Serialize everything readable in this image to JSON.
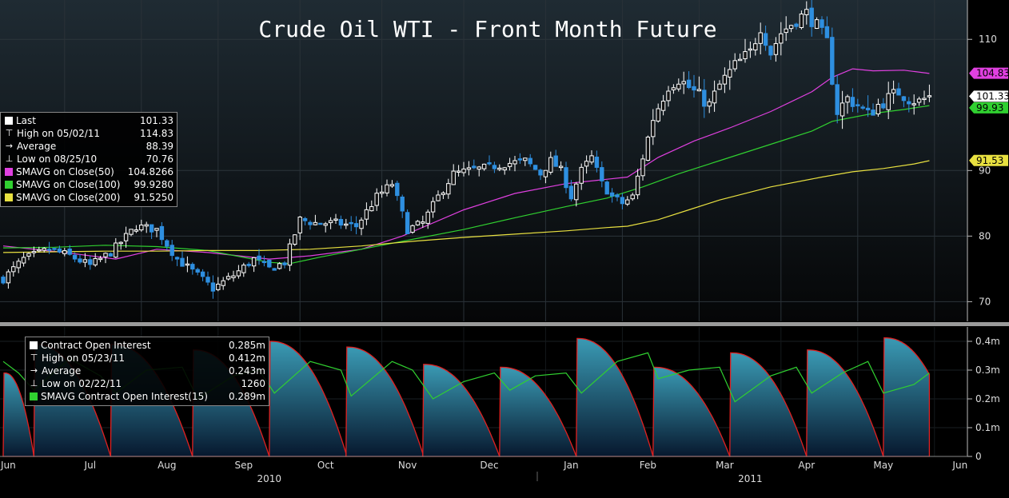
{
  "chart_data": [
    {
      "type": "candlestick",
      "title": "Crude Oil WTI - Front Month Future",
      "ylim": [
        67,
        116
      ],
      "yticks": [
        70,
        80,
        90,
        110
      ],
      "grid": true,
      "legend_position": "left",
      "colors": {
        "up": "#ffffff",
        "down": "#2e8fe0",
        "sma50": "#e040e0",
        "sma100": "#30d030",
        "sma200": "#e8e040"
      },
      "series": [
        {
          "name": "Price",
          "anchors": [
            [
              0,
              73.5
            ],
            [
              4,
              76.5
            ],
            [
              9,
              78
            ],
            [
              13,
              77
            ],
            [
              17,
              75.5
            ],
            [
              21,
              77.5
            ],
            [
              26,
              81.5
            ],
            [
              30,
              81
            ],
            [
              34,
              76.5
            ],
            [
              38,
              74
            ],
            [
              41,
              72
            ],
            [
              45,
              74
            ],
            [
              49,
              76.5
            ],
            [
              52,
              75
            ],
            [
              55,
              76
            ],
            [
              58,
              82.5
            ],
            [
              61,
              82
            ],
            [
              65,
              82
            ],
            [
              69,
              81.5
            ],
            [
              73,
              86
            ],
            [
              76,
              88
            ],
            [
              79,
              81
            ],
            [
              82,
              82
            ],
            [
              85,
              86
            ],
            [
              88,
              89.5
            ],
            [
              91,
              90
            ],
            [
              95,
              90.5
            ],
            [
              98,
              91
            ],
            [
              102,
              91.5
            ],
            [
              105,
              89.5
            ],
            [
              107,
              91.5
            ],
            [
              109,
              90
            ],
            [
              111,
              86
            ],
            [
              113,
              90
            ],
            [
              115,
              92
            ],
            [
              117,
              88
            ],
            [
              119,
              86
            ],
            [
              121,
              85
            ],
            [
              123,
              86
            ],
            [
              125,
              92
            ],
            [
              127,
              98
            ],
            [
              130,
              103
            ],
            [
              132,
              104
            ],
            [
              135,
              102
            ],
            [
              138,
              100
            ],
            [
              140,
              103
            ],
            [
              143,
              106
            ],
            [
              146,
              108
            ],
            [
              148,
              112
            ],
            [
              150,
              108
            ],
            [
              152,
              111
            ],
            [
              155,
              113
            ],
            [
              157,
              114
            ],
            [
              159,
              112
            ],
            [
              161,
              109.5
            ],
            [
              162,
              104
            ],
            [
              163,
              99
            ],
            [
              165,
              101
            ],
            [
              167,
              100
            ],
            [
              169,
              98.5
            ],
            [
              171,
              100
            ],
            [
              173,
              101
            ],
            [
              175,
              102
            ],
            [
              177,
              101
            ],
            [
              179,
              100.5
            ],
            [
              181,
              101.3
            ]
          ]
        },
        {
          "name": "SMAVG on Close(50)",
          "points": [
            [
              0,
              78.5
            ],
            [
              12,
              77.5
            ],
            [
              22,
              76.5
            ],
            [
              30,
              78
            ],
            [
              40,
              77.5
            ],
            [
              52,
              76.5
            ],
            [
              60,
              77
            ],
            [
              70,
              78
            ],
            [
              78,
              80
            ],
            [
              90,
              84
            ],
            [
              100,
              86.5
            ],
            [
              110,
              88
            ],
            [
              116,
              88.5
            ],
            [
              122,
              89
            ],
            [
              128,
              92
            ],
            [
              135,
              94.5
            ],
            [
              142,
              96.5
            ],
            [
              150,
              99
            ],
            [
              158,
              102
            ],
            [
              162,
              104.2
            ],
            [
              166,
              105.5
            ],
            [
              170,
              105.2
            ],
            [
              176,
              105.3
            ],
            [
              181,
              104.8
            ]
          ]
        },
        {
          "name": "SMAVG on Close(100)",
          "points": [
            [
              0,
              78.2
            ],
            [
              10,
              78.3
            ],
            [
              20,
              78.6
            ],
            [
              30,
              78.4
            ],
            [
              40,
              77.8
            ],
            [
              52,
              76
            ],
            [
              56,
              75.8
            ],
            [
              62,
              76.8
            ],
            [
              70,
              78
            ],
            [
              80,
              79.5
            ],
            [
              90,
              81
            ],
            [
              100,
              82.8
            ],
            [
              110,
              84.5
            ],
            [
              118,
              85.8
            ],
            [
              125,
              87.5
            ],
            [
              132,
              89.5
            ],
            [
              140,
              91.5
            ],
            [
              150,
              94
            ],
            [
              158,
              96
            ],
            [
              162,
              97.5
            ],
            [
              170,
              98.7
            ],
            [
              176,
              99.3
            ],
            [
              181,
              99.9
            ]
          ]
        },
        {
          "name": "SMAVG on Close(200)",
          "points": [
            [
              0,
              77.5
            ],
            [
              10,
              77.6
            ],
            [
              20,
              77.7
            ],
            [
              30,
              77.7
            ],
            [
              40,
              77.8
            ],
            [
              50,
              77.8
            ],
            [
              60,
              78
            ],
            [
              70,
              78.5
            ],
            [
              80,
              79.2
            ],
            [
              90,
              79.8
            ],
            [
              100,
              80.3
            ],
            [
              110,
              80.8
            ],
            [
              118,
              81.3
            ],
            [
              122,
              81.5
            ],
            [
              128,
              82.5
            ],
            [
              134,
              84
            ],
            [
              140,
              85.5
            ],
            [
              150,
              87.5
            ],
            [
              160,
              89
            ],
            [
              166,
              89.8
            ],
            [
              172,
              90.3
            ],
            [
              178,
              91
            ],
            [
              181,
              91.5
            ]
          ]
        }
      ],
      "axis_labels": [
        {
          "text": "104.83",
          "value": 104.83,
          "color": "#e040e0"
        },
        {
          "text": "101.33",
          "value": 101.33,
          "color": "#ffffff"
        },
        {
          "text": "99.93",
          "value": 99.93,
          "color": "#30d030"
        },
        {
          "text": "91.53",
          "value": 91.53,
          "color": "#e8e040"
        }
      ]
    },
    {
      "type": "area",
      "ylim": [
        0,
        0.45
      ],
      "yticks": [
        0,
        0.1,
        0.2,
        0.3,
        0.4
      ],
      "ytick_labels": [
        "0",
        "0.1m",
        "0.2m",
        "0.3m",
        "0.4m"
      ],
      "colors": {
        "area_top": "#3a9ab4",
        "area_bottom": "#07182e",
        "edge": "#e02020",
        "sma": "#30d030"
      },
      "series": [
        {
          "name": "Contract Open Interest",
          "cycles": [
            [
              0,
              6,
              0.29,
              0.0
            ],
            [
              6,
              21,
              0.39,
              0.0
            ],
            [
              21,
              37,
              0.39,
              0.0
            ],
            [
              37,
              52,
              0.37,
              0.0
            ],
            [
              52,
              67,
              0.4,
              0.01
            ],
            [
              67,
              82,
              0.38,
              0.01
            ],
            [
              82,
              97,
              0.32,
              0.0
            ],
            [
              97,
              112,
              0.31,
              0.0
            ],
            [
              112,
              127,
              0.41,
              0.0
            ],
            [
              127,
              142,
              0.31,
              0.0
            ],
            [
              142,
              157,
              0.36,
              0.0
            ],
            [
              157,
              172,
              0.37,
              0.0
            ],
            [
              172,
              181,
              0.412,
              0.285
            ]
          ]
        },
        {
          "name": "SMAVG Contract Open Interest(15)",
          "points": [
            [
              0,
              0.33
            ],
            [
              3,
              0.29
            ],
            [
              6,
              0.23
            ],
            [
              13,
              0.34
            ],
            [
              19,
              0.28
            ],
            [
              22,
              0.22
            ],
            [
              28,
              0.3
            ],
            [
              35,
              0.31
            ],
            [
              38,
              0.2
            ],
            [
              45,
              0.28
            ],
            [
              50,
              0.3
            ],
            [
              53,
              0.22
            ],
            [
              60,
              0.33
            ],
            [
              66,
              0.3
            ],
            [
              68,
              0.21
            ],
            [
              76,
              0.33
            ],
            [
              80,
              0.3
            ],
            [
              84,
              0.2
            ],
            [
              90,
              0.26
            ],
            [
              96,
              0.29
            ],
            [
              99,
              0.23
            ],
            [
              104,
              0.28
            ],
            [
              110,
              0.29
            ],
            [
              113,
              0.22
            ],
            [
              120,
              0.33
            ],
            [
              126,
              0.36
            ],
            [
              128,
              0.27
            ],
            [
              134,
              0.3
            ],
            [
              140,
              0.31
            ],
            [
              143,
              0.19
            ],
            [
              150,
              0.28
            ],
            [
              155,
              0.31
            ],
            [
              158,
              0.22
            ],
            [
              164,
              0.29
            ],
            [
              169,
              0.33
            ],
            [
              172,
              0.22
            ],
            [
              178,
              0.25
            ],
            [
              181,
              0.29
            ]
          ]
        }
      ]
    }
  ],
  "x_axis": {
    "months": [
      {
        "label": "Jun",
        "index": 1
      },
      {
        "label": "Jul",
        "index": 17
      },
      {
        "label": "Aug",
        "index": 32
      },
      {
        "label": "Sep",
        "index": 47
      },
      {
        "label": "Oct",
        "index": 63
      },
      {
        "label": "Nov",
        "index": 79
      },
      {
        "label": "Dec",
        "index": 95
      },
      {
        "label": "Jan",
        "index": 111
      },
      {
        "label": "Feb",
        "index": 126
      },
      {
        "label": "Mar",
        "index": 141
      },
      {
        "label": "Apr",
        "index": 157
      },
      {
        "label": "May",
        "index": 172
      },
      {
        "label": "Jun",
        "index": 187
      }
    ],
    "years": [
      {
        "label": "2010",
        "index": 52
      },
      {
        "label": "2011",
        "index": 146
      }
    ]
  },
  "legend_price": [
    {
      "marker": "square",
      "color": "#ffffff",
      "label": "Last",
      "value": "101.33"
    },
    {
      "marker": "high",
      "label": "High on 05/02/11",
      "value": "114.83"
    },
    {
      "marker": "average",
      "label": "Average",
      "value": "88.39"
    },
    {
      "marker": "low",
      "label": "Low on 08/25/10",
      "value": "70.76"
    },
    {
      "marker": "square",
      "color": "#e040e0",
      "label": "SMAVG on Close(50)",
      "value": "104.8266"
    },
    {
      "marker": "square",
      "color": "#30d030",
      "label": "SMAVG on Close(100)",
      "value": "99.9280"
    },
    {
      "marker": "square",
      "color": "#e8e040",
      "label": "SMAVG on Close(200)",
      "value": "91.5250"
    }
  ],
  "legend_oi": [
    {
      "marker": "square",
      "color": "#ffffff",
      "label": "Contract Open Interest",
      "value": "0.285m"
    },
    {
      "marker": "high",
      "label": "High on 05/23/11",
      "value": "0.412m"
    },
    {
      "marker": "average",
      "label": "Average",
      "value": "0.243m"
    },
    {
      "marker": "low",
      "label": "Low on 02/22/11",
      "value": "1260"
    },
    {
      "marker": "square",
      "color": "#30d030",
      "label": "SMAVG Contract Open Interest(15)",
      "value": "0.289m"
    }
  ]
}
